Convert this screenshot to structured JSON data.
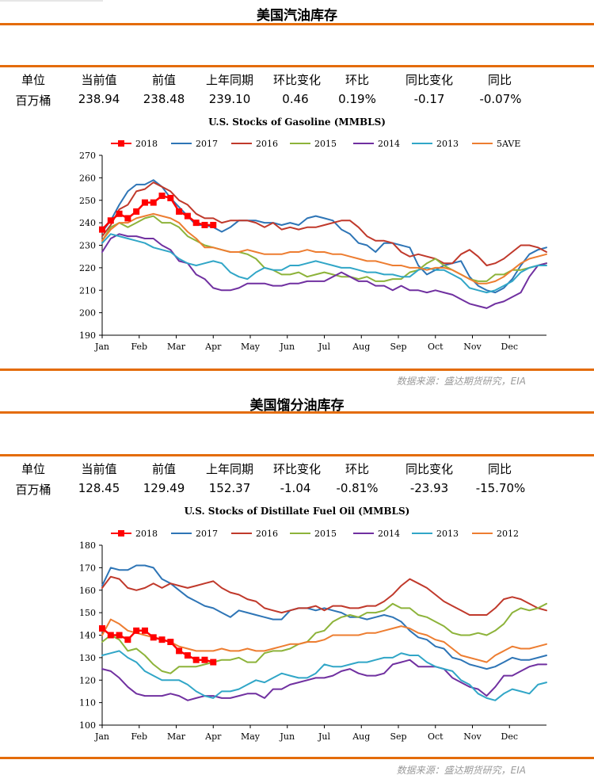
{
  "sections": [
    {
      "title": "美国汽油库存",
      "headers": [
        "单位",
        "当前值",
        "前值",
        "上年同期",
        "环比变化",
        "环比",
        "同比变化",
        "同比"
      ],
      "values": [
        "百万桶",
        "238.94",
        "238.48",
        "239.10",
        "0.46",
        "0.19%",
        "-0.17",
        "-0.07%"
      ],
      "source": "数据来源：盛达期货研究，EIA"
    },
    {
      "title": "美国馏分油库存",
      "headers": [
        "单位",
        "当前值",
        "前值",
        "上年同期",
        "环比变化",
        "环比",
        "同比变化",
        "同比"
      ],
      "values": [
        "百万桶",
        "128.45",
        "129.49",
        "152.37",
        "-1.04",
        "-0.81%",
        "-23.93",
        "-15.70%"
      ],
      "source": "数据来源：盛达期货研究，EIA"
    }
  ],
  "chart_data": [
    {
      "type": "line",
      "title": "U.S.  Stocks of  Gasoline (MMBLS)",
      "x_ticks": [
        "Jan",
        "Feb",
        "Mar",
        "Apr",
        "May",
        "Jun",
        "Jul",
        "Aug",
        "Sep",
        "Oct",
        "Nov",
        "Dec"
      ],
      "x_range": [
        1,
        53
      ],
      "ylim": [
        190,
        270
      ],
      "y_ticks": [
        190,
        200,
        210,
        220,
        230,
        240,
        250,
        260,
        270
      ],
      "legend_position": "top",
      "series": [
        {
          "name": "2018",
          "color": "#ff0000",
          "marker": "square",
          "width": 2.5,
          "values": [
            237,
            241,
            244,
            242,
            245,
            249,
            249,
            252,
            251,
            245,
            243,
            240,
            239,
            239
          ]
        },
        {
          "name": "2017",
          "color": "#2e75b6",
          "width": 2,
          "values": [
            236,
            241,
            248,
            254,
            257,
            257,
            259,
            256,
            251,
            247,
            243,
            239,
            239,
            238,
            236,
            238,
            241,
            241,
            241,
            240,
            240,
            239,
            240,
            239,
            242,
            243,
            242,
            241,
            237,
            235,
            231,
            230,
            227,
            231,
            231,
            230,
            229,
            221,
            217,
            219,
            221,
            222,
            223,
            216,
            212,
            210,
            209,
            211,
            215,
            221,
            226,
            228,
            229
          ]
        },
        {
          "name": "2016",
          "color": "#c0392b",
          "width": 2,
          "values": [
            234,
            239,
            246,
            248,
            254,
            255,
            258,
            256,
            254,
            250,
            248,
            244,
            242,
            242,
            240,
            241,
            241,
            241,
            240,
            238,
            240,
            237,
            238,
            237,
            238,
            238,
            239,
            240,
            241,
            241,
            238,
            234,
            232,
            232,
            231,
            227,
            225,
            226,
            225,
            224,
            222,
            222,
            226,
            228,
            225,
            221,
            222,
            224,
            227,
            230,
            230,
            229,
            227
          ]
        },
        {
          "name": "2015",
          "color": "#8db33a",
          "width": 2,
          "values": [
            232,
            238,
            240,
            238,
            240,
            242,
            243,
            240,
            240,
            238,
            234,
            232,
            230,
            229,
            228,
            227,
            227,
            226,
            224,
            220,
            219,
            217,
            217,
            218,
            216,
            217,
            218,
            217,
            216,
            216,
            215,
            216,
            214,
            214,
            215,
            215,
            218,
            219,
            222,
            224,
            221,
            219,
            217,
            215,
            214,
            214,
            217,
            217,
            219,
            219,
            220,
            221,
            222
          ]
        },
        {
          "name": "2014",
          "color": "#7030a0",
          "width": 2,
          "values": [
            227,
            233,
            235,
            234,
            234,
            233,
            233,
            230,
            228,
            223,
            222,
            217,
            215,
            211,
            210,
            210,
            211,
            213,
            213,
            213,
            212,
            212,
            213,
            213,
            214,
            214,
            214,
            216,
            218,
            216,
            214,
            214,
            212,
            212,
            210,
            212,
            210,
            210,
            209,
            210,
            209,
            208,
            206,
            204,
            203,
            202,
            204,
            205,
            207,
            209,
            216,
            221,
            222
          ]
        },
        {
          "name": "2013",
          "color": "#31a6c7",
          "width": 2,
          "values": [
            231,
            235,
            234,
            233,
            232,
            231,
            229,
            228,
            227,
            224,
            222,
            221,
            222,
            223,
            222,
            218,
            216,
            215,
            218,
            220,
            219,
            219,
            221,
            221,
            222,
            223,
            222,
            221,
            220,
            220,
            219,
            218,
            218,
            217,
            217,
            216,
            216,
            219,
            220,
            219,
            219,
            217,
            215,
            211,
            210,
            209,
            210,
            212,
            214,
            218,
            220,
            221,
            221
          ]
        },
        {
          "name": "5AVE",
          "color": "#ed7d31",
          "width": 2,
          "values": [
            232,
            237,
            240,
            240,
            242,
            243,
            244,
            243,
            242,
            240,
            236,
            233,
            229,
            229,
            228,
            227,
            227,
            228,
            227,
            226,
            226,
            226,
            227,
            227,
            228,
            227,
            227,
            226,
            226,
            225,
            224,
            223,
            223,
            222,
            221,
            221,
            220,
            220,
            219,
            220,
            220,
            219,
            217,
            215,
            213,
            213,
            214,
            216,
            219,
            222,
            224,
            225,
            226
          ]
        }
      ]
    },
    {
      "type": "line",
      "title": "U.S.  Stocks of Distillate Fuel Oil (MMBLS)",
      "x_ticks": [
        "Jan",
        "Feb",
        "Mar",
        "Apr",
        "May",
        "Jun",
        "Jul",
        "Aug",
        "Sep",
        "Oct",
        "Nov",
        "Dec"
      ],
      "x_range": [
        1,
        53
      ],
      "ylim": [
        100,
        180
      ],
      "y_ticks": [
        100,
        110,
        120,
        130,
        140,
        150,
        160,
        170,
        180
      ],
      "legend_position": "top",
      "series": [
        {
          "name": "2018",
          "color": "#ff0000",
          "marker": "square",
          "width": 2.5,
          "values": [
            143,
            140,
            140,
            138,
            142,
            142,
            139,
            138,
            137,
            133,
            131,
            129,
            129,
            128
          ]
        },
        {
          "name": "2017",
          "color": "#2e75b6",
          "width": 2,
          "values": [
            162,
            170,
            169,
            169,
            171,
            171,
            170,
            165,
            163,
            160,
            157,
            155,
            153,
            152,
            150,
            148,
            151,
            150,
            149,
            148,
            147,
            147,
            151,
            152,
            152,
            151,
            152,
            151,
            150,
            148,
            148,
            147,
            148,
            149,
            148,
            146,
            142,
            139,
            138,
            135,
            134,
            130,
            129,
            127,
            126,
            125,
            126,
            128,
            130,
            129,
            129,
            130,
            131
          ]
        },
        {
          "name": "2016",
          "color": "#c0392b",
          "width": 2,
          "values": [
            161,
            166,
            165,
            161,
            160,
            161,
            163,
            161,
            163,
            162,
            161,
            162,
            163,
            164,
            161,
            159,
            158,
            156,
            155,
            152,
            151,
            150,
            151,
            152,
            152,
            153,
            151,
            153,
            153,
            152,
            152,
            153,
            153,
            155,
            158,
            162,
            165,
            163,
            161,
            158,
            155,
            153,
            151,
            149,
            149,
            149,
            152,
            156,
            157,
            156,
            154,
            152,
            151
          ]
        },
        {
          "name": "2015",
          "color": "#8db33a",
          "width": 2,
          "values": [
            137,
            140,
            138,
            133,
            134,
            131,
            127,
            124,
            123,
            126,
            126,
            126,
            127,
            128,
            129,
            129,
            130,
            128,
            128,
            132,
            133,
            133,
            134,
            136,
            137,
            141,
            142,
            146,
            148,
            149,
            148,
            150,
            150,
            151,
            154,
            152,
            152,
            149,
            148,
            146,
            144,
            141,
            140,
            140,
            141,
            140,
            142,
            145,
            150,
            152,
            151,
            152,
            154
          ]
        },
        {
          "name": "2014",
          "color": "#7030a0",
          "width": 2,
          "values": [
            125,
            124,
            121,
            117,
            114,
            113,
            113,
            113,
            114,
            113,
            111,
            112,
            113,
            113,
            112,
            112,
            113,
            114,
            114,
            112,
            116,
            116,
            118,
            119,
            120,
            121,
            121,
            122,
            124,
            125,
            123,
            122,
            122,
            123,
            127,
            128,
            129,
            126,
            126,
            126,
            125,
            121,
            119,
            117,
            116,
            113,
            117,
            122,
            122,
            124,
            126,
            127,
            127
          ]
        },
        {
          "name": "2013",
          "color": "#31a6c7",
          "width": 2,
          "values": [
            131,
            132,
            133,
            130,
            128,
            124,
            122,
            120,
            120,
            120,
            118,
            115,
            113,
            112,
            115,
            115,
            116,
            118,
            120,
            119,
            121,
            123,
            122,
            121,
            121,
            123,
            127,
            126,
            126,
            127,
            128,
            128,
            129,
            130,
            130,
            132,
            131,
            131,
            128,
            126,
            125,
            124,
            120,
            118,
            114,
            112,
            111,
            114,
            116,
            115,
            114,
            118,
            119
          ]
        },
        {
          "name": "2012",
          "color": "#ed7d31",
          "width": 2,
          "values": [
            140,
            147,
            145,
            142,
            141,
            140,
            139,
            138,
            137,
            135,
            134,
            133,
            133,
            133,
            134,
            133,
            133,
            134,
            133,
            133,
            134,
            135,
            136,
            136,
            137,
            137,
            138,
            140,
            140,
            140,
            140,
            141,
            141,
            142,
            143,
            144,
            143,
            141,
            140,
            138,
            137,
            134,
            131,
            130,
            129,
            128,
            131,
            133,
            135,
            134,
            134,
            135,
            136
          ]
        }
      ]
    }
  ]
}
